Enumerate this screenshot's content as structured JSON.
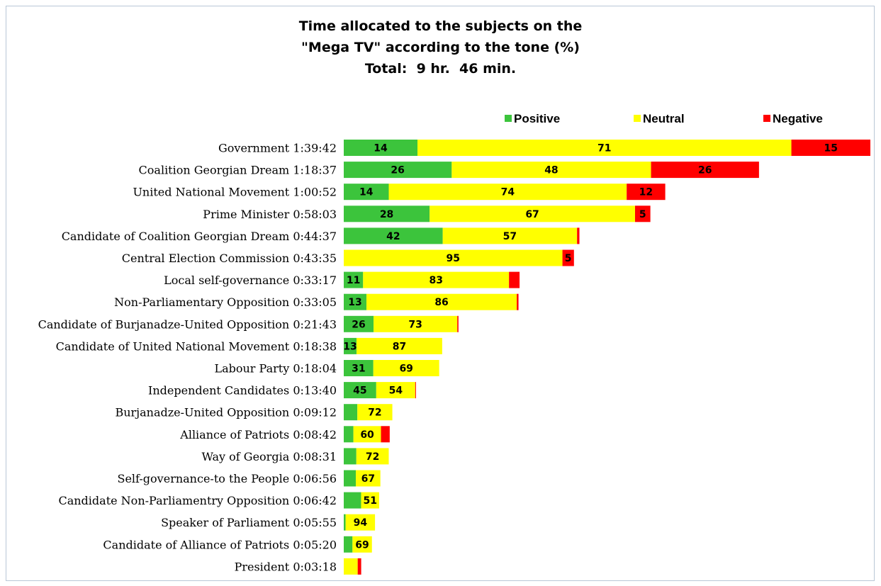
{
  "title": {
    "line1": "Time allocated to the subjects on the",
    "line2": "\"Mega TV\" according to the tone (%)",
    "line3": "Total:  9 hr.  46 min."
  },
  "legend": {
    "positive": "Positive",
    "neutral": "Neutral",
    "negative": "Negative",
    "placement": "top-right"
  },
  "colors": {
    "positive": "#3cc43c",
    "neutral": "#ffff00",
    "negative": "#ff0000"
  },
  "chart_data": {
    "type": "bar",
    "orientation": "horizontal",
    "stacked": true,
    "title": "Time allocated to the subjects on the \"Mega TV\" according to the tone (%) Total:  9 hr.  46 min.",
    "categories": [
      "Government 1:39:42",
      "Coalition Georgian Dream 1:18:37",
      "United National Movement 1:00:52",
      "Prime Minister 0:58:03",
      "Candidate of Coalition Georgian Dream 0:44:37",
      "Central Election Commission 0:43:35",
      "Local self-governance 0:33:17",
      "Non-Parliamentary Opposition 0:33:05",
      "Candidate of Burjanadze-United Opposition 0:21:43",
      "Candidate of United National Movement 0:18:38",
      "Labour Party 0:18:04",
      "Independent Candidates 0:13:40",
      "Burjanadze-United Opposition 0:09:12",
      "Alliance of Patriots 0:08:42",
      "Way of Georgia 0:08:31",
      "Self-governance-to the People 0:06:56",
      "Candidate Non-Parliamentry Opposition 0:06:42",
      "Speaker of Parliament 0:05:55",
      "Candidate of Alliance of Patriots 0:05:20",
      "President 0:03:18"
    ],
    "durations_seconds": [
      5982,
      4717,
      3652,
      3483,
      2677,
      2615,
      1997,
      1985,
      1303,
      1118,
      1084,
      820,
      552,
      522,
      511,
      416,
      402,
      355,
      320,
      198
    ],
    "series": [
      {
        "name": "Positive",
        "values": [
          14,
          26,
          14,
          28,
          42,
          0,
          11,
          13,
          26,
          13,
          31,
          45,
          28,
          21,
          28,
          33,
          49,
          6,
          31,
          0
        ],
        "labels": [
          "14",
          "26",
          "14",
          "28",
          "42",
          "",
          "11",
          "13",
          "26",
          "13",
          "31",
          "45",
          "",
          "",
          "",
          "",
          "",
          "",
          "",
          ""
        ]
      },
      {
        "name": "Neutral",
        "values": [
          71,
          48,
          74,
          67,
          57,
          95,
          83,
          86,
          73,
          87,
          69,
          54,
          72,
          60,
          72,
          67,
          51,
          94,
          69,
          80
        ],
        "labels": [
          "71",
          "48",
          "74",
          "67",
          "57",
          "95",
          "83",
          "86",
          "73",
          "87",
          "69",
          "54",
          "72",
          "60",
          "72",
          "67",
          "51",
          "94",
          "69",
          ""
        ]
      },
      {
        "name": "Negative",
        "values": [
          15,
          26,
          12,
          5,
          1,
          5,
          6,
          1,
          1,
          0,
          0,
          1,
          0,
          19,
          0,
          0,
          0,
          0,
          0,
          20
        ],
        "labels": [
          "15",
          "26",
          "12",
          "5",
          "",
          "5",
          "",
          "",
          "",
          "",
          "",
          "",
          "",
          "",
          "",
          "",
          "",
          "",
          "",
          ""
        ]
      }
    ],
    "grid": false
  }
}
